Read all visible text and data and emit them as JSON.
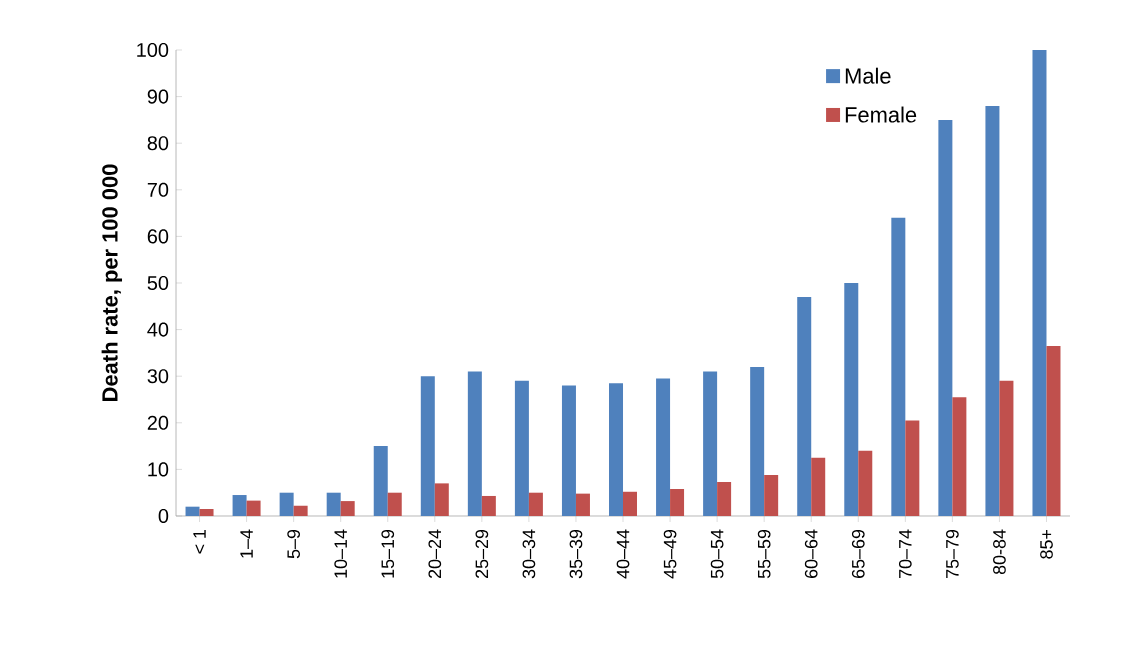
{
  "chart_data": {
    "type": "bar",
    "ylabel": "Death rate, per 100 000",
    "categories": [
      "< 1",
      "1–4",
      "5–9",
      "10–14",
      "15–19",
      "20–24",
      "25–29",
      "30–34",
      "35–39",
      "40–44",
      "45–49",
      "50–54",
      "55–59",
      "60–64",
      "65–69",
      "70–74",
      "75–79",
      "80-84",
      "85+"
    ],
    "series": [
      {
        "name": "Male",
        "color": "#4f81bd",
        "values": [
          2,
          4.5,
          5,
          5,
          15,
          30,
          31,
          29,
          28,
          28.5,
          29.5,
          31,
          32,
          47,
          50,
          64,
          85,
          88,
          100
        ]
      },
      {
        "name": "Female",
        "color": "#c0504d",
        "values": [
          1.5,
          3.3,
          2.2,
          3.2,
          5,
          7,
          4.3,
          5,
          4.8,
          5.2,
          5.8,
          7.3,
          8.8,
          12.5,
          14,
          20.5,
          25.5,
          29,
          36.5
        ]
      }
    ],
    "ylim": [
      0,
      100
    ],
    "yticks": [
      0,
      10,
      20,
      30,
      40,
      50,
      60,
      70,
      80,
      90,
      100
    ],
    "grid": false,
    "legend": "top right"
  }
}
